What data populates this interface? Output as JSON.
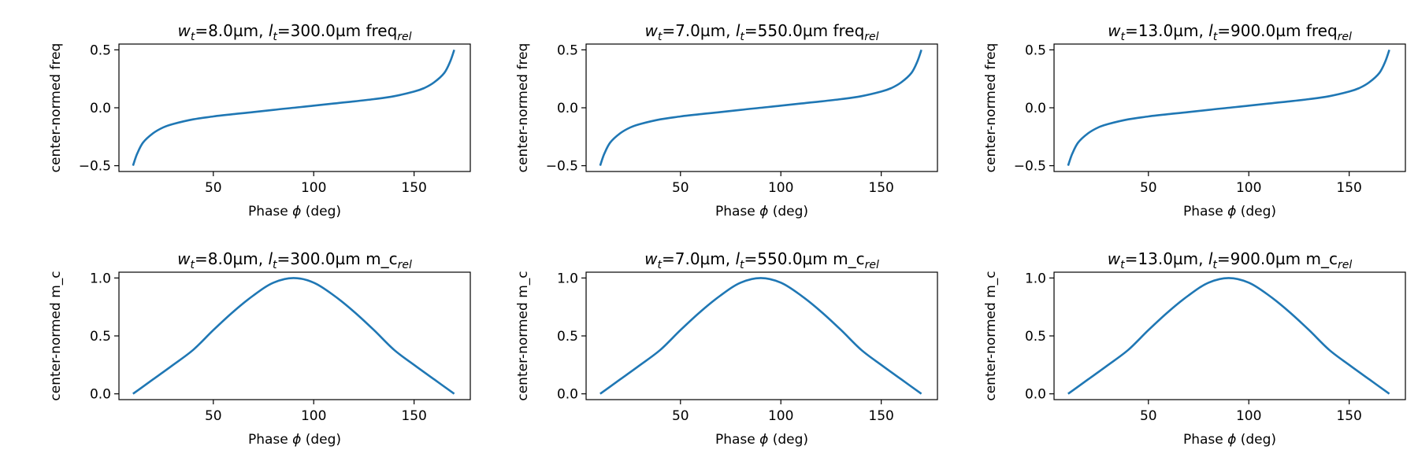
{
  "colors": {
    "line": "#1f77b4",
    "axes": "#000000",
    "background": "#ffffff"
  },
  "chart_data": [
    {
      "type": "line",
      "title": {
        "w": "8.0µm",
        "l": "300.0µm",
        "suffix": "freq"
      },
      "xlabel": {
        "pre": "Phase ",
        "sym": "ϕ",
        "post": " (deg)"
      },
      "ylabel": "center-normed freq",
      "xlim": [
        3,
        178
      ],
      "ylim": [
        -0.55,
        0.55
      ],
      "xticks": [
        50,
        100,
        150
      ],
      "yticks": [
        -0.5,
        0.0,
        0.5
      ],
      "ytick_labels": [
        "−0.5",
        "0.0",
        "0.5"
      ],
      "grid": false,
      "series": [
        {
          "x": [
            10,
            12,
            15,
            20,
            25,
            30,
            40,
            50,
            60,
            70,
            80,
            90,
            100,
            110,
            120,
            130,
            140,
            150,
            155,
            160,
            165,
            168,
            170
          ],
          "y": [
            -0.5,
            -0.4,
            -0.3,
            -0.22,
            -0.17,
            -0.14,
            -0.1,
            -0.075,
            -0.055,
            -0.037,
            -0.018,
            0.0,
            0.018,
            0.037,
            0.055,
            0.075,
            0.1,
            0.14,
            0.17,
            0.22,
            0.3,
            0.4,
            0.5
          ]
        }
      ]
    },
    {
      "type": "line",
      "title": {
        "w": "7.0µm",
        "l": "550.0µm",
        "suffix": "freq"
      },
      "xlabel": {
        "pre": "Phase ",
        "sym": "ϕ",
        "post": " (deg)"
      },
      "ylabel": "center-normed freq",
      "xlim": [
        3,
        178
      ],
      "ylim": [
        -0.55,
        0.55
      ],
      "xticks": [
        50,
        100,
        150
      ],
      "yticks": [
        -0.5,
        0.0,
        0.5
      ],
      "ytick_labels": [
        "−0.5",
        "0.0",
        "0.5"
      ],
      "grid": false,
      "series": [
        {
          "x": [
            10,
            12,
            15,
            20,
            25,
            30,
            40,
            50,
            60,
            70,
            80,
            90,
            100,
            110,
            120,
            130,
            140,
            150,
            155,
            160,
            165,
            168,
            170
          ],
          "y": [
            -0.5,
            -0.4,
            -0.3,
            -0.22,
            -0.17,
            -0.14,
            -0.1,
            -0.075,
            -0.055,
            -0.037,
            -0.018,
            0.0,
            0.018,
            0.037,
            0.055,
            0.075,
            0.1,
            0.14,
            0.17,
            0.22,
            0.3,
            0.4,
            0.5
          ]
        }
      ]
    },
    {
      "type": "line",
      "title": {
        "w": "13.0µm",
        "l": "900.0µm",
        "suffix": "freq"
      },
      "xlabel": {
        "pre": "Phase ",
        "sym": "ϕ",
        "post": " (deg)"
      },
      "ylabel": "center-normed freq",
      "xlim": [
        3,
        178
      ],
      "ylim": [
        -0.55,
        0.55
      ],
      "xticks": [
        50,
        100,
        150
      ],
      "yticks": [
        -0.5,
        0.0,
        0.5
      ],
      "ytick_labels": [
        "−0.5",
        "0.0",
        "0.5"
      ],
      "grid": false,
      "series": [
        {
          "x": [
            10,
            12,
            15,
            20,
            25,
            30,
            40,
            50,
            60,
            70,
            80,
            90,
            100,
            110,
            120,
            130,
            140,
            150,
            155,
            160,
            165,
            168,
            170
          ],
          "y": [
            -0.5,
            -0.4,
            -0.3,
            -0.22,
            -0.17,
            -0.14,
            -0.1,
            -0.075,
            -0.055,
            -0.037,
            -0.018,
            0.0,
            0.018,
            0.037,
            0.055,
            0.075,
            0.1,
            0.14,
            0.17,
            0.22,
            0.3,
            0.4,
            0.5
          ]
        }
      ]
    },
    {
      "type": "line",
      "title": {
        "w": "8.0µm",
        "l": "300.0µm",
        "suffix": "m_c"
      },
      "xlabel": {
        "pre": "Phase ",
        "sym": "ϕ",
        "post": " (deg)"
      },
      "ylabel": "center-normed m_c",
      "xlim": [
        3,
        178
      ],
      "ylim": [
        -0.05,
        1.05
      ],
      "xticks": [
        50,
        100,
        150
      ],
      "yticks": [
        0.0,
        0.5,
        1.0
      ],
      "ytick_labels": [
        "0.0",
        "0.5",
        "1.0"
      ],
      "grid": false,
      "series": [
        {
          "x": [
            10,
            20,
            30,
            40,
            50,
            60,
            70,
            80,
            90,
            100,
            110,
            120,
            130,
            140,
            150,
            160,
            170
          ],
          "y": [
            0.0,
            0.125,
            0.25,
            0.38,
            0.55,
            0.71,
            0.85,
            0.96,
            1.0,
            0.96,
            0.85,
            0.71,
            0.55,
            0.38,
            0.25,
            0.125,
            0.0
          ]
        }
      ]
    },
    {
      "type": "line",
      "title": {
        "w": "7.0µm",
        "l": "550.0µm",
        "suffix": "m_c"
      },
      "xlabel": {
        "pre": "Phase ",
        "sym": "ϕ",
        "post": " (deg)"
      },
      "ylabel": "center-normed m_c",
      "xlim": [
        3,
        178
      ],
      "ylim": [
        -0.05,
        1.05
      ],
      "xticks": [
        50,
        100,
        150
      ],
      "yticks": [
        0.0,
        0.5,
        1.0
      ],
      "ytick_labels": [
        "0.0",
        "0.5",
        "1.0"
      ],
      "grid": false,
      "series": [
        {
          "x": [
            10,
            20,
            30,
            40,
            50,
            60,
            70,
            80,
            90,
            100,
            110,
            120,
            130,
            140,
            150,
            160,
            170
          ],
          "y": [
            0.0,
            0.125,
            0.25,
            0.38,
            0.55,
            0.71,
            0.85,
            0.96,
            1.0,
            0.96,
            0.85,
            0.71,
            0.55,
            0.38,
            0.25,
            0.125,
            0.0
          ]
        }
      ]
    },
    {
      "type": "line",
      "title": {
        "w": "13.0µm",
        "l": "900.0µm",
        "suffix": "m_c"
      },
      "xlabel": {
        "pre": "Phase ",
        "sym": "ϕ",
        "post": " (deg)"
      },
      "ylabel": "center-normed m_c",
      "xlim": [
        3,
        178
      ],
      "ylim": [
        -0.05,
        1.05
      ],
      "xticks": [
        50,
        100,
        150
      ],
      "yticks": [
        0.0,
        0.5,
        1.0
      ],
      "ytick_labels": [
        "0.0",
        "0.5",
        "1.0"
      ],
      "grid": false,
      "series": [
        {
          "x": [
            10,
            20,
            30,
            40,
            50,
            60,
            70,
            80,
            90,
            100,
            110,
            120,
            130,
            140,
            150,
            160,
            170
          ],
          "y": [
            0.0,
            0.125,
            0.25,
            0.38,
            0.55,
            0.71,
            0.85,
            0.96,
            1.0,
            0.96,
            0.85,
            0.71,
            0.55,
            0.38,
            0.25,
            0.125,
            0.0
          ]
        }
      ]
    }
  ]
}
